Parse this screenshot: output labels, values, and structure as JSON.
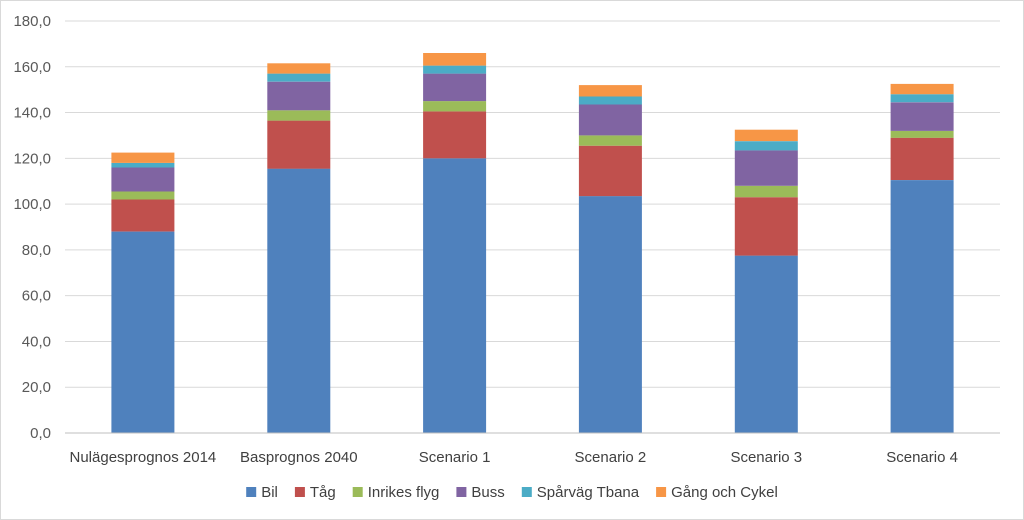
{
  "chart_data": {
    "type": "bar",
    "stacked": true,
    "title": "",
    "xlabel": "",
    "ylabel": "",
    "ylim": [
      0,
      180
    ],
    "ytick_step": 20,
    "ytick_labels": [
      "0,0",
      "20,0",
      "40,0",
      "60,0",
      "80,0",
      "100,0",
      "120,0",
      "140,0",
      "160,0",
      "180,0"
    ],
    "grid": true,
    "legend_position": "bottom",
    "categories": [
      "Nulägesprognos 2014",
      "Basprognos 2040",
      "Scenario 1",
      "Scenario 2",
      "Scenario 3",
      "Scenario 4"
    ],
    "series": [
      {
        "name": "Bil",
        "color": "#4f81bd",
        "values": [
          88.0,
          115.5,
          120.0,
          103.5,
          77.5,
          110.5
        ]
      },
      {
        "name": "Tåg",
        "color": "#c0504d",
        "values": [
          14.0,
          21.0,
          20.5,
          22.0,
          25.5,
          18.5
        ]
      },
      {
        "name": "Inrikes flyg",
        "color": "#9bbb59",
        "values": [
          3.5,
          4.5,
          4.5,
          4.5,
          5.0,
          3.0
        ]
      },
      {
        "name": "Buss",
        "color": "#8064a2",
        "values": [
          10.5,
          12.5,
          12.0,
          13.5,
          15.5,
          12.5
        ]
      },
      {
        "name": "Spårväg Tbana",
        "color": "#4bacc6",
        "values": [
          2.0,
          3.5,
          3.5,
          3.5,
          4.0,
          3.5
        ]
      },
      {
        "name": "Gång och Cykel",
        "color": "#f79646",
        "values": [
          4.5,
          4.5,
          5.5,
          5.0,
          5.0,
          4.5
        ]
      }
    ]
  }
}
